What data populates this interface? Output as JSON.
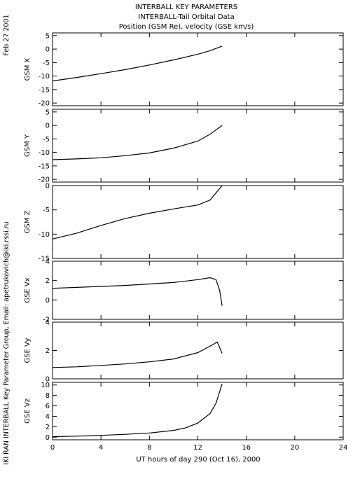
{
  "header": {
    "date_label": "Feb 27 2001",
    "title_lines": [
      "INTERBALL KEY PARAMETERS",
      "INTERBALL-Tail Orbital Data",
      "Position (GSM Re), velocity (GSE km/s)"
    ]
  },
  "credit": "IKI RAN INTERBALL Key Parameter Group, Email: apetrukovich@iki.rssi.ru",
  "chart_data": [
    {
      "type": "line",
      "ylabel": "GSM X",
      "ylim": [
        -21,
        6
      ],
      "yticks": [
        5,
        0,
        -5,
        -10,
        -15,
        -20
      ],
      "x": [
        0,
        2,
        4,
        6,
        8,
        10,
        12,
        13,
        14
      ],
      "values": [
        -11.8,
        -10.5,
        -9.1,
        -7.6,
        -5.9,
        -4.0,
        -1.9,
        -0.6,
        1.1
      ]
    },
    {
      "type": "line",
      "ylabel": "GSM Y",
      "ylim": [
        -21,
        6
      ],
      "yticks": [
        5,
        0,
        -5,
        -10,
        -15,
        -20
      ],
      "x": [
        0,
        2,
        4,
        6,
        8,
        10,
        12,
        13,
        14
      ],
      "values": [
        -12.7,
        -12.4,
        -12.0,
        -11.2,
        -10.2,
        -8.4,
        -5.8,
        -3.3,
        0.0
      ]
    },
    {
      "type": "line",
      "ylabel": "GSM Z",
      "ylim": [
        -15,
        0
      ],
      "yticks": [
        0,
        -5,
        -10,
        -15
      ],
      "x": [
        0,
        2,
        4,
        6,
        8,
        10,
        12,
        13,
        14
      ],
      "values": [
        -11.0,
        -9.8,
        -8.2,
        -6.8,
        -5.7,
        -4.8,
        -4.0,
        -3.0,
        0.0
      ]
    },
    {
      "type": "line",
      "ylabel": "GSE Vx",
      "ylim": [
        -2,
        4
      ],
      "yticks": [
        4,
        2,
        0,
        -2
      ],
      "x": [
        0,
        2,
        4,
        6,
        8,
        10,
        12,
        13,
        13.5,
        13.8,
        14
      ],
      "values": [
        1.2,
        1.3,
        1.4,
        1.5,
        1.65,
        1.8,
        2.1,
        2.3,
        2.1,
        1.0,
        -0.6
      ]
    },
    {
      "type": "line",
      "ylabel": "GSE Vy",
      "ylim": [
        0,
        4
      ],
      "yticks": [
        4,
        2,
        0
      ],
      "x": [
        0,
        2,
        4,
        6,
        8,
        10,
        12,
        13,
        13.6,
        14
      ],
      "values": [
        0.8,
        0.85,
        0.95,
        1.05,
        1.2,
        1.4,
        1.85,
        2.3,
        2.6,
        1.8
      ]
    },
    {
      "type": "line",
      "ylabel": "GSE Vz",
      "ylim": [
        -0.5,
        10.5
      ],
      "yticks": [
        10,
        8,
        6,
        4,
        2,
        0
      ],
      "x": [
        0,
        2,
        4,
        6,
        8,
        10,
        11,
        12,
        13,
        13.5,
        14
      ],
      "values": [
        0.1,
        0.2,
        0.35,
        0.55,
        0.8,
        1.3,
        1.8,
        2.7,
        4.5,
        6.5,
        10.2
      ]
    }
  ],
  "xaxis": {
    "xlim": [
      0,
      24
    ],
    "ticks": [
      0,
      4,
      8,
      12,
      16,
      20,
      24
    ],
    "label": "UT hours of day 290 (Oct 16), 2000"
  }
}
